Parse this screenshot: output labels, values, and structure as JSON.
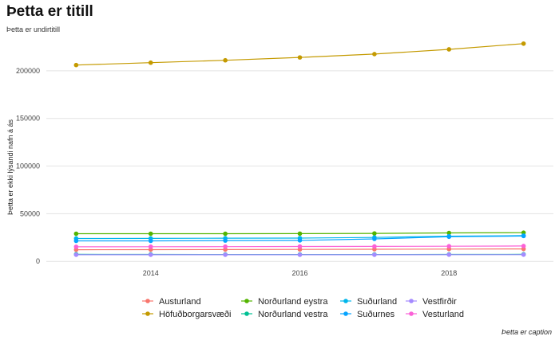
{
  "chart_data": {
    "type": "line",
    "title": "Þetta er titill",
    "subtitle": "Þetta er undirtitill",
    "caption": "Þetta er caption",
    "xlabel": "",
    "ylabel": "Þetta er ekki lýsandi nafn á ás",
    "x": [
      2013,
      2014,
      2015,
      2016,
      2017,
      2018,
      2019
    ],
    "x_ticks": [
      2014,
      2016,
      2018
    ],
    "xlim": [
      2012.6,
      2019.4
    ],
    "y_ticks": [
      0,
      50000,
      100000,
      150000,
      200000
    ],
    "ylim": [
      -1500,
      235000
    ],
    "grid": true,
    "legend_position": "bottom",
    "series": [
      {
        "name": "Austurland",
        "color": "#F8766D",
        "values": [
          12200,
          12300,
          12400,
          12500,
          12700,
          12900,
          13000
        ]
      },
      {
        "name": "Höfuðborgarsvæði",
        "color": "#C49A00",
        "values": [
          206000,
          208500,
          211000,
          214000,
          217500,
          222500,
          228500
        ]
      },
      {
        "name": "Norðurland eystra",
        "color": "#53B400",
        "values": [
          29000,
          29000,
          29000,
          29100,
          29300,
          29800,
          30100
        ]
      },
      {
        "name": "Norðurland vestra",
        "color": "#00C094",
        "values": [
          7400,
          7300,
          7200,
          7200,
          7200,
          7300,
          7400
        ]
      },
      {
        "name": "Suðurland",
        "color": "#00B6EB",
        "values": [
          24000,
          24100,
          24300,
          24400,
          25100,
          26400,
          27000
        ]
      },
      {
        "name": "Suðurnes",
        "color": "#06A4FF",
        "values": [
          21500,
          21500,
          21800,
          22000,
          23600,
          25800,
          26600
        ]
      },
      {
        "name": "Vestfirðir",
        "color": "#A58AFF",
        "values": [
          6900,
          6900,
          6900,
          6900,
          6900,
          7000,
          7000
        ]
      },
      {
        "name": "Vesturland",
        "color": "#FB61D7",
        "values": [
          15300,
          15400,
          15500,
          15600,
          15700,
          15900,
          16100
        ]
      }
    ]
  }
}
